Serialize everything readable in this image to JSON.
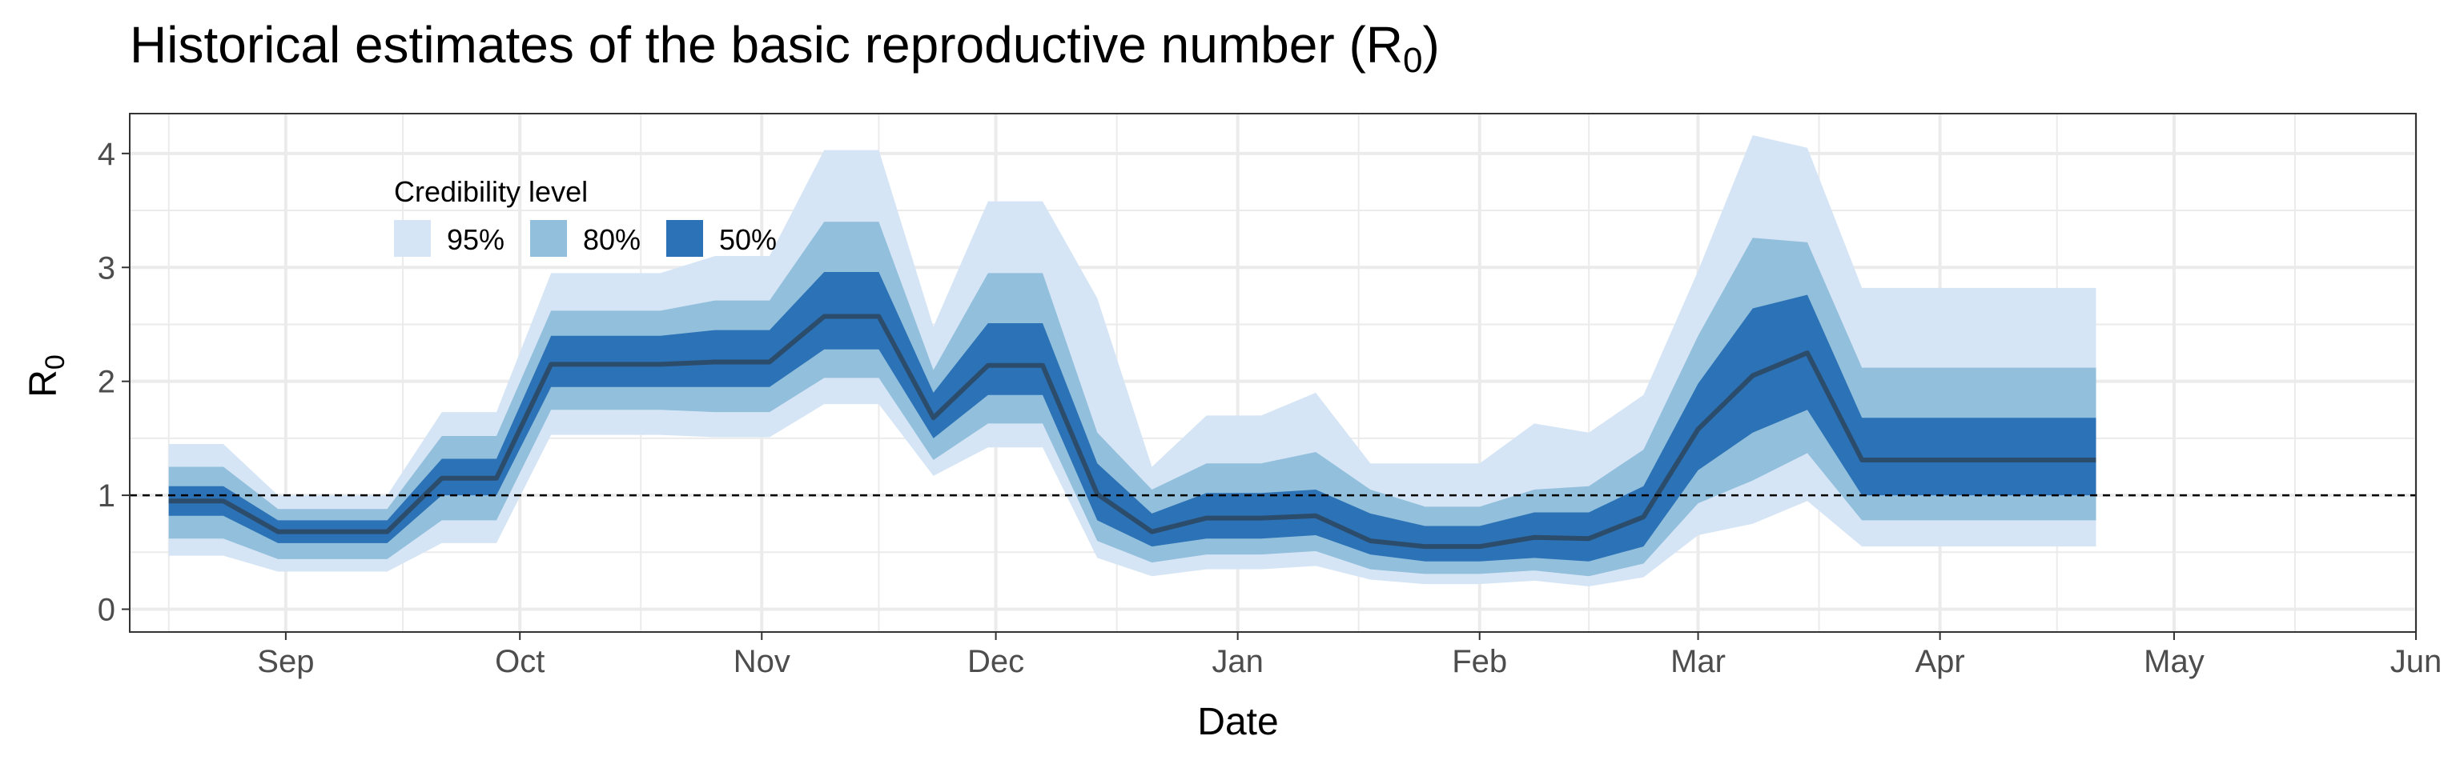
{
  "chart_data": {
    "type": "area",
    "title": "Historical estimates of the basic reproductive number (R",
    "title_sub": "0",
    "title_close": ")",
    "xlabel": "Date",
    "ylabel": "R",
    "ylabel_sub": "0",
    "x_axis_type": "date",
    "xlim": [
      "2020-08-12",
      "2021-06-01"
    ],
    "ylim": [
      -0.2,
      4.35
    ],
    "x_ticks": [
      {
        "date": "2020-09-01",
        "label": "Sep"
      },
      {
        "date": "2020-10-01",
        "label": "Oct"
      },
      {
        "date": "2020-11-01",
        "label": "Nov"
      },
      {
        "date": "2020-12-01",
        "label": "Dec"
      },
      {
        "date": "2021-01-01",
        "label": "Jan"
      },
      {
        "date": "2021-02-01",
        "label": "Feb"
      },
      {
        "date": "2021-03-01",
        "label": "Mar"
      },
      {
        "date": "2021-04-01",
        "label": "Apr"
      },
      {
        "date": "2021-05-01",
        "label": "May"
      },
      {
        "date": "2021-06-01",
        "label": "Jun"
      }
    ],
    "y_ticks": [
      0,
      1,
      2,
      3,
      4
    ],
    "reference_line": {
      "y": 1,
      "style": "dashed"
    },
    "grid": true,
    "legend": {
      "title": "Credibility level",
      "position": "top-left",
      "entries": [
        {
          "label": "95%",
          "color": "#d6e5f5"
        },
        {
          "label": "80%",
          "color": "#91bfdc"
        },
        {
          "label": "50%",
          "color": "#2c72b6"
        }
      ]
    },
    "colors": {
      "band95": "#d6e5f5",
      "band80": "#91bfdc",
      "band50": "#2c72b6",
      "median": "#2c4c6c"
    },
    "x": [
      "2020-08-17",
      "2020-08-24",
      "2020-08-31",
      "2020-09-07",
      "2020-09-14",
      "2020-09-21",
      "2020-09-28",
      "2020-10-05",
      "2020-10-12",
      "2020-10-19",
      "2020-10-26",
      "2020-11-02",
      "2020-11-09",
      "2020-11-16",
      "2020-11-23",
      "2020-11-30",
      "2020-12-07",
      "2020-12-14",
      "2020-12-21",
      "2020-12-28",
      "2021-01-04",
      "2021-01-11",
      "2021-01-18",
      "2021-01-25",
      "2021-02-01",
      "2021-02-08",
      "2021-02-15",
      "2021-02-22",
      "2021-03-01",
      "2021-03-08",
      "2021-03-15",
      "2021-03-22",
      "2021-03-29",
      "2021-04-05",
      "2021-04-12",
      "2021-04-19",
      "2021-04-21"
    ],
    "median": [
      0.95,
      0.95,
      0.68,
      0.68,
      0.68,
      1.15,
      1.15,
      2.15,
      2.15,
      2.15,
      2.17,
      2.17,
      2.57,
      2.57,
      1.68,
      2.14,
      2.14,
      1.01,
      0.68,
      0.8,
      0.8,
      0.82,
      0.6,
      0.55,
      0.55,
      0.63,
      0.62,
      0.81,
      1.58,
      2.05,
      2.25,
      1.31,
      1.31,
      1.31,
      1.31,
      1.31,
      1.31
    ],
    "lower50": [
      0.82,
      0.82,
      0.58,
      0.58,
      0.58,
      1.0,
      1.0,
      1.95,
      1.95,
      1.95,
      1.95,
      1.95,
      2.28,
      2.28,
      1.5,
      1.88,
      1.88,
      0.78,
      0.55,
      0.62,
      0.62,
      0.65,
      0.48,
      0.42,
      0.42,
      0.45,
      0.42,
      0.55,
      1.22,
      1.55,
      1.75,
      1.0,
      1.0,
      1.0,
      1.0,
      1.0,
      1.0
    ],
    "upper50": [
      1.08,
      1.08,
      0.78,
      0.78,
      0.78,
      1.32,
      1.32,
      2.4,
      2.4,
      2.4,
      2.45,
      2.45,
      2.96,
      2.96,
      1.9,
      2.51,
      2.51,
      1.28,
      0.84,
      1.02,
      1.02,
      1.05,
      0.84,
      0.73,
      0.73,
      0.85,
      0.85,
      1.08,
      1.98,
      2.64,
      2.76,
      1.68,
      1.68,
      1.68,
      1.68,
      1.68,
      1.68
    ],
    "lower80": [
      0.62,
      0.62,
      0.44,
      0.44,
      0.44,
      0.78,
      0.78,
      1.75,
      1.75,
      1.75,
      1.73,
      1.73,
      2.03,
      2.03,
      1.31,
      1.63,
      1.63,
      0.6,
      0.41,
      0.48,
      0.48,
      0.51,
      0.35,
      0.31,
      0.31,
      0.34,
      0.29,
      0.4,
      0.93,
      1.13,
      1.37,
      0.78,
      0.78,
      0.78,
      0.78,
      0.78,
      0.78
    ],
    "upper80": [
      1.25,
      1.25,
      0.88,
      0.88,
      0.88,
      1.52,
      1.52,
      2.62,
      2.62,
      2.62,
      2.71,
      2.71,
      3.4,
      3.4,
      2.1,
      2.95,
      2.95,
      1.55,
      1.05,
      1.28,
      1.28,
      1.38,
      1.05,
      0.9,
      0.9,
      1.05,
      1.08,
      1.4,
      2.4,
      3.26,
      3.22,
      2.12,
      2.12,
      2.12,
      2.12,
      2.12,
      2.12
    ],
    "lower95": [
      0.47,
      0.47,
      0.33,
      0.33,
      0.33,
      0.58,
      0.58,
      1.53,
      1.53,
      1.53,
      1.51,
      1.51,
      1.8,
      1.8,
      1.17,
      1.42,
      1.42,
      0.45,
      0.29,
      0.35,
      0.35,
      0.38,
      0.26,
      0.22,
      0.22,
      0.25,
      0.2,
      0.28,
      0.65,
      0.75,
      0.95,
      0.55,
      0.55,
      0.55,
      0.55,
      0.55,
      0.55
    ],
    "upper95": [
      1.45,
      1.45,
      1.0,
      1.0,
      1.0,
      1.73,
      1.73,
      2.95,
      2.95,
      2.95,
      3.1,
      3.1,
      4.03,
      4.03,
      2.48,
      3.58,
      3.58,
      2.73,
      1.25,
      1.7,
      1.7,
      1.9,
      1.28,
      1.28,
      1.28,
      1.63,
      1.55,
      1.88,
      2.97,
      4.16,
      4.05,
      2.82,
      2.82,
      2.82,
      2.82,
      2.82,
      2.82
    ]
  }
}
